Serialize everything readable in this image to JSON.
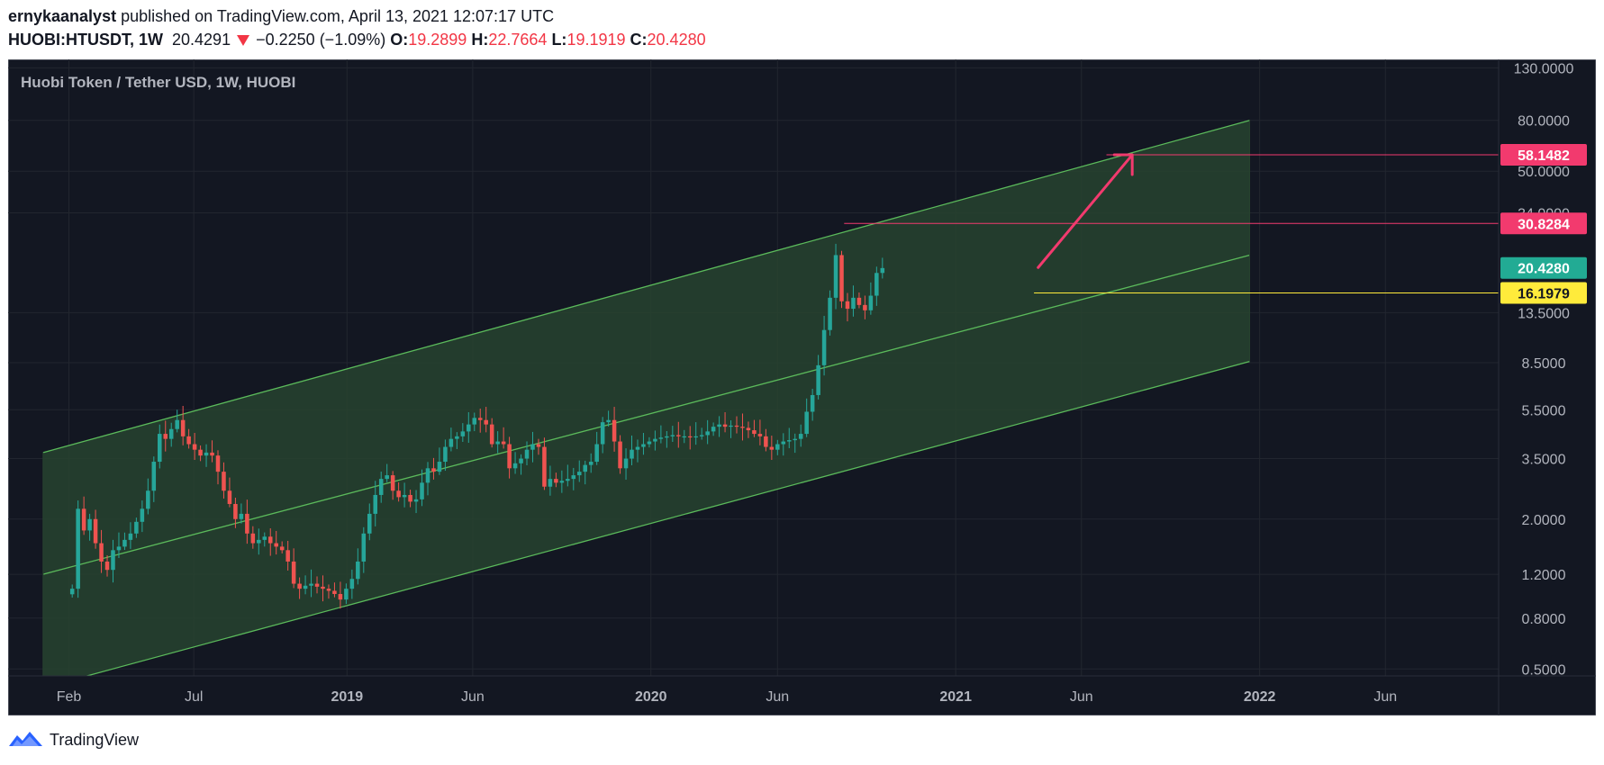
{
  "header": {
    "author": "ernykaanalyst",
    "published_text": "published on TradingView.com, April 13, 2021 12:07:17 UTC",
    "symbol": "HUOBI:HTUSDT, 1W",
    "last": "20.4291",
    "change": "−0.2250 (−1.09%)",
    "o_label": "O:",
    "o_value": "19.2899",
    "h_label": "H:",
    "h_value": "22.7664",
    "l_label": "L:",
    "l_value": "19.1919",
    "c_label": "C:",
    "c_value": "20.4280"
  },
  "footer": {
    "brand": "TradingView",
    "icon": "tradingview-logo-icon"
  },
  "colors": {
    "background": "#131722",
    "up": "#26a69a",
    "down": "#ef5350",
    "channel_line": "#5bba5b",
    "channel_fill": "#27432f",
    "target_pink": "#f23a6e",
    "support_yellow": "#ffeb3b",
    "last_price_teal": "#22ab94"
  },
  "chart_data": {
    "type": "candlestick",
    "title": "Huobi Token / Tether USD, 1W, HUOBI",
    "y_scale": "log",
    "ylim": [
      0.45,
      135
    ],
    "grid": true,
    "y_ticks": [
      "130.0000",
      "80.0000",
      "50.0000",
      "34.0000",
      "13.5000",
      "8.5000",
      "5.5000",
      "3.5000",
      "2.0000",
      "1.2000",
      "0.8000",
      "0.5000"
    ],
    "x_ticks": [
      "Feb",
      "Jul",
      "2019",
      "Jun",
      "2020",
      "Jun",
      "2021",
      "Jun",
      "2022",
      "Jun"
    ],
    "x_tick_dates": [
      "2018-02-01",
      "2018-07-01",
      "2019-01-01",
      "2019-06-01",
      "2020-01-01",
      "2020-06-01",
      "2021-01-01",
      "2021-06-01",
      "2022-01-01",
      "2022-06-01"
    ],
    "x_range": [
      "2017-11-20",
      "2022-10-15"
    ],
    "candle_interval": "1W",
    "first_candle": "2018-02-05",
    "closes": [
      1.05,
      2.2,
      1.8,
      2.0,
      1.6,
      1.35,
      1.25,
      1.5,
      1.55,
      1.65,
      1.75,
      1.95,
      2.2,
      2.6,
      3.4,
      4.4,
      4.2,
      4.6,
      5.0,
      4.3,
      4.0,
      3.8,
      3.6,
      3.7,
      3.6,
      3.1,
      2.6,
      2.3,
      2.0,
      2.1,
      1.75,
      1.6,
      1.65,
      1.7,
      1.6,
      1.55,
      1.5,
      1.35,
      1.1,
      1.05,
      1.08,
      1.1,
      1.07,
      1.05,
      1.03,
      1.0,
      0.95,
      1.05,
      1.15,
      1.35,
      1.75,
      2.1,
      2.5,
      2.9,
      3.0,
      2.6,
      2.45,
      2.5,
      2.35,
      2.4,
      2.8,
      3.2,
      3.1,
      3.4,
      3.9,
      4.2,
      4.3,
      4.5,
      4.8,
      5.1,
      5.0,
      4.8,
      4.0,
      4.1,
      4.0,
      3.2,
      3.35,
      3.5,
      3.8,
      4.0,
      3.9,
      2.7,
      2.9,
      2.8,
      2.85,
      2.9,
      3.0,
      3.1,
      3.3,
      3.4,
      4.0,
      4.9,
      5.0,
      4.1,
      3.2,
      3.5,
      3.8,
      3.9,
      4.0,
      4.1,
      4.2,
      4.25,
      4.3,
      4.35,
      4.3,
      4.3,
      4.28,
      4.3,
      4.35,
      4.5,
      4.7,
      4.8,
      4.7,
      4.75,
      4.7,
      4.65,
      4.55,
      4.4,
      4.3,
      3.9,
      3.8,
      4.0,
      4.1,
      4.15,
      4.2,
      4.4,
      5.4,
      6.3,
      8.3,
      11.5,
      15.5,
      23.0,
      15.0,
      14.0,
      15.5,
      14.5,
      13.8,
      15.8,
      19.5,
      20.4
    ],
    "channel": {
      "start": "2018-01-01",
      "end": "2021-12-20",
      "upper": [
        3.7,
        80.0
      ],
      "middle": [
        1.2,
        23.0
      ],
      "lower": [
        0.42,
        8.6
      ]
    },
    "price_lines": [
      {
        "value": 58.1482,
        "label": "58.1482",
        "from": "2021-07-01",
        "color": "#f23a6e"
      },
      {
        "value": 30.8284,
        "label": "30.8284",
        "from": "2020-08-20",
        "color": "#f23a6e"
      },
      {
        "value": 16.1979,
        "label": "16.1979",
        "from": "2021-04-05",
        "color": "#ffeb3b"
      }
    ],
    "last_price": {
      "value": 20.428,
      "label": "20.4280"
    },
    "arrow": {
      "from": [
        "2021-04-10",
        20.5
      ],
      "to": [
        "2021-08-01",
        58.1482
      ]
    }
  }
}
